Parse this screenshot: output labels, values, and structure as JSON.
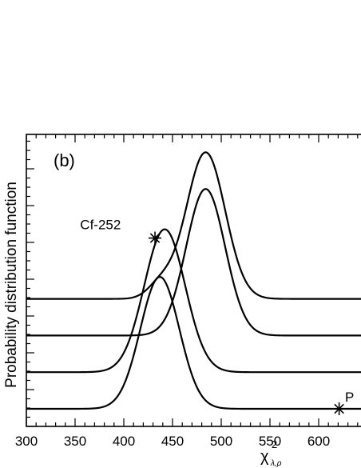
{
  "chart_data": {
    "type": "line",
    "panel_label": "(b)",
    "xlabel_base": "χ",
    "xlabel_sup": "2",
    "xlabel_sub": "λ,ρ",
    "ylabel": "Probability distribution function",
    "xlim": [
      300,
      650
    ],
    "xticks": [
      300,
      350,
      400,
      450,
      500,
      550,
      600
    ],
    "xtick_labels": [
      "300",
      "350",
      "400",
      "450",
      "500",
      "550",
      "600"
    ],
    "xtick_clipped_label": "6",
    "grid": false,
    "series": [
      {
        "offset": 0,
        "peaks": [
          {
            "center": 437,
            "sigma": 20,
            "height": 3.6
          }
        ]
      },
      {
        "offset": 1,
        "peaks": [
          {
            "center": 442,
            "sigma": 21,
            "height": 3.9
          }
        ]
      },
      {
        "offset": 2,
        "peaks": [
          {
            "center": 484,
            "sigma": 20,
            "height": 4.0
          }
        ]
      },
      {
        "offset": 3,
        "peaks": [
          {
            "center": 484,
            "sigma": 20,
            "height": 4.0
          },
          {
            "center": 438,
            "sigma": 13,
            "height": 0.4
          }
        ]
      }
    ],
    "annotations": [
      {
        "label": "Cf-252",
        "marker": {
          "x": 432,
          "y": 4.66
        },
        "text": {
          "x": 397,
          "y": 4.9
        }
      },
      {
        "label": "P",
        "marker": {
          "x": 621,
          "y": 0
        },
        "text": {
          "x": 627,
          "y": 0.2
        }
      },
      {
        "label": "",
        "marker": {
          "x": 649,
          "y": 2.0
        }
      }
    ]
  }
}
